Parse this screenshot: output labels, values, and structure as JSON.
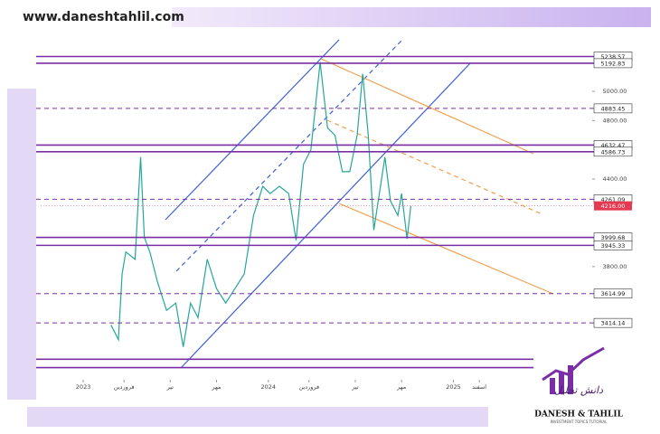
{
  "website": "www.daneshtahlil.com",
  "logo": {
    "name": "DANESH & TAHLIL",
    "tagline": "INVESTMENT TOPICS TUTORIAL",
    "mark": "دانش تحلیل"
  },
  "chart_data": {
    "type": "line",
    "x": [
      2023.15,
      2023.19,
      2023.21,
      2023.23,
      2023.28,
      2023.31,
      2023.33,
      2023.36,
      2023.4,
      2023.45,
      2023.5,
      2023.54,
      2023.58,
      2023.62,
      2023.67,
      2023.72,
      2023.77,
      2023.82,
      2023.87,
      2023.92,
      2023.97,
      2024.01,
      2024.06,
      2024.11,
      2024.15,
      2024.19,
      2024.23,
      2024.28,
      2024.32,
      2024.36,
      2024.4,
      2024.44,
      2024.48,
      2024.51,
      2024.54,
      2024.57,
      2024.6,
      2024.63,
      2024.66,
      2024.7,
      2024.72,
      2024.75,
      2024.77
    ],
    "series": [
      {
        "color": "#26a69a",
        "values": [
          3400,
          3300,
          3750,
          3900,
          3850,
          4550,
          4000,
          3900,
          3700,
          3500,
          3550,
          3250,
          3550,
          3450,
          3850,
          3650,
          3550,
          3650,
          3750,
          4150,
          4350,
          4300,
          4350,
          4300,
          3980,
          4500,
          4600,
          5200,
          4750,
          4700,
          4450,
          4450,
          4700,
          5120,
          4700,
          4050,
          4300,
          4550,
          4250,
          4150,
          4300,
          3990,
          4216
        ]
      }
    ],
    "xlim": [
      2022.77,
      2025.75
    ],
    "xticks": [
      {
        "value": 2023,
        "label": "2023"
      },
      {
        "value": 2023.22,
        "label": "فروردین"
      },
      {
        "value": 2023.47,
        "label": "تیر"
      },
      {
        "value": 2023.72,
        "label": "مهر"
      },
      {
        "value": 2024,
        "label": "2024"
      },
      {
        "value": 2024.22,
        "label": "فروردین"
      },
      {
        "value": 2024.47,
        "label": "تیر"
      },
      {
        "value": 2024.72,
        "label": "مهر"
      },
      {
        "value": 2025,
        "label": "2025"
      },
      {
        "value": 2025.14,
        "label": "اسفند"
      }
    ],
    "ylim": [
      3025,
      5347
    ],
    "yticks": [
      {
        "value": 5000,
        "label": "5000.00"
      },
      {
        "value": 4800,
        "label": "4800.00"
      },
      {
        "value": 4400,
        "label": "4400.00"
      },
      {
        "value": 3800,
        "label": "3800.00"
      }
    ],
    "level_color": "#7a2ea6",
    "levels": [
      {
        "value": 5238.57,
        "dashed": false
      },
      {
        "value": 5192.83,
        "dashed": false
      },
      {
        "value": 4883.45,
        "dashed": true
      },
      {
        "value": 4632.47,
        "dashed": false
      },
      {
        "value": 4586.73,
        "dashed": false
      },
      {
        "value": 4261.09,
        "dashed": true
      },
      {
        "value": 3999.68,
        "dashed": false
      },
      {
        "value": 3945.33,
        "dashed": false
      },
      {
        "value": 3614.99,
        "dashed": true
      },
      {
        "value": 3414.14,
        "dashed": true
      },
      {
        "value": 3165.34,
        "dashed": false
      },
      {
        "value": 3108.43,
        "dashed": false
      }
    ],
    "current_price": {
      "value": 4216,
      "label": "4216.00",
      "color": "#e53950"
    }
  }
}
